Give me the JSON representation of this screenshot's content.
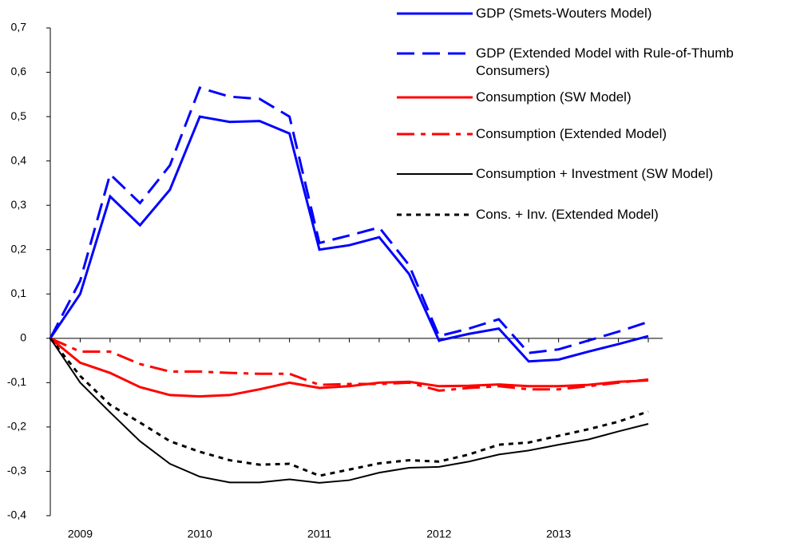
{
  "chart_data": {
    "type": "line",
    "categories": [
      null,
      "2009",
      null,
      null,
      null,
      "2010",
      null,
      null,
      null,
      "2011",
      null,
      null,
      null,
      "2012",
      null,
      null,
      null,
      "2013",
      null,
      null,
      null
    ],
    "ylim": [
      -0.4,
      0.7
    ],
    "yticks": [
      {
        "value": 0.7,
        "label": "0,7"
      },
      {
        "value": 0.6,
        "label": "0,6"
      },
      {
        "value": 0.5,
        "label": "0,5"
      },
      {
        "value": 0.4,
        "label": "0,4"
      },
      {
        "value": 0.3,
        "label": "0,3"
      },
      {
        "value": 0.2,
        "label": "0,2"
      },
      {
        "value": 0.1,
        "label": "0,1"
      },
      0,
      {
        "value": -0.1,
        "label": "-0,1"
      },
      {
        "value": -0.2,
        "label": "-0,2"
      },
      {
        "value": -0.3,
        "label": "-0,3"
      },
      {
        "value": -0.4,
        "label": "-0,4"
      }
    ],
    "series": [
      {
        "name": "GDP (Smets-Wouters Model)",
        "color": "#0000ff",
        "line_style": "solid",
        "width": 3,
        "values": [
          0,
          0.1,
          0.32,
          0.255,
          0.335,
          0.5,
          0.488,
          0.49,
          0.462,
          0.2,
          0.21,
          0.228,
          0.145,
          -0.005,
          0.01,
          0.022,
          -0.052,
          -0.048,
          -0.03,
          -0.013,
          0.005
        ]
      },
      {
        "name": "GDP (Extended Model with Rule-of-Thumb Consumers)",
        "color": "#0000ff",
        "line_style": "dashed",
        "width": 3,
        "values": [
          0,
          0.13,
          0.37,
          0.305,
          0.39,
          0.565,
          0.545,
          0.54,
          0.5,
          0.215,
          0.232,
          0.25,
          0.165,
          0.005,
          0.022,
          0.043,
          -0.033,
          -0.025,
          -0.005,
          0.015,
          0.037
        ]
      },
      {
        "name": "Consumption (SW Model)",
        "color": "#ff0000",
        "line_style": "solid",
        "width": 3,
        "values": [
          0,
          -0.055,
          -0.078,
          -0.11,
          -0.128,
          -0.131,
          -0.128,
          -0.115,
          -0.1,
          -0.112,
          -0.108,
          -0.1,
          -0.098,
          -0.108,
          -0.107,
          -0.104,
          -0.108,
          -0.108,
          -0.105,
          -0.098,
          -0.095
        ]
      },
      {
        "name": "Consumption (Extended Model)",
        "color": "#ff0000",
        "line_style": "dashdot",
        "width": 3,
        "values": [
          0,
          -0.03,
          -0.03,
          -0.058,
          -0.075,
          -0.075,
          -0.078,
          -0.08,
          -0.08,
          -0.105,
          -0.103,
          -0.103,
          -0.1,
          -0.118,
          -0.112,
          -0.108,
          -0.115,
          -0.115,
          -0.108,
          -0.1,
          -0.093
        ]
      },
      {
        "name": "Consumption + Investment (SW Model)",
        "color": "#000000",
        "line_style": "solid",
        "width": 2,
        "values": [
          0,
          -0.1,
          -0.167,
          -0.232,
          -0.283,
          -0.312,
          -0.325,
          -0.325,
          -0.318,
          -0.326,
          -0.32,
          -0.303,
          -0.292,
          -0.29,
          -0.278,
          -0.262,
          -0.253,
          -0.24,
          -0.228,
          -0.21,
          -0.193
        ]
      },
      {
        "name": "Cons. + Inv. (Extended Model)",
        "color": "#000000",
        "line_style": "dotted",
        "width": 3,
        "values": [
          0,
          -0.085,
          -0.15,
          -0.19,
          -0.232,
          -0.256,
          -0.275,
          -0.285,
          -0.283,
          -0.31,
          -0.296,
          -0.282,
          -0.275,
          -0.278,
          -0.262,
          -0.24,
          -0.235,
          -0.22,
          -0.205,
          -0.188,
          -0.165
        ]
      }
    ]
  }
}
